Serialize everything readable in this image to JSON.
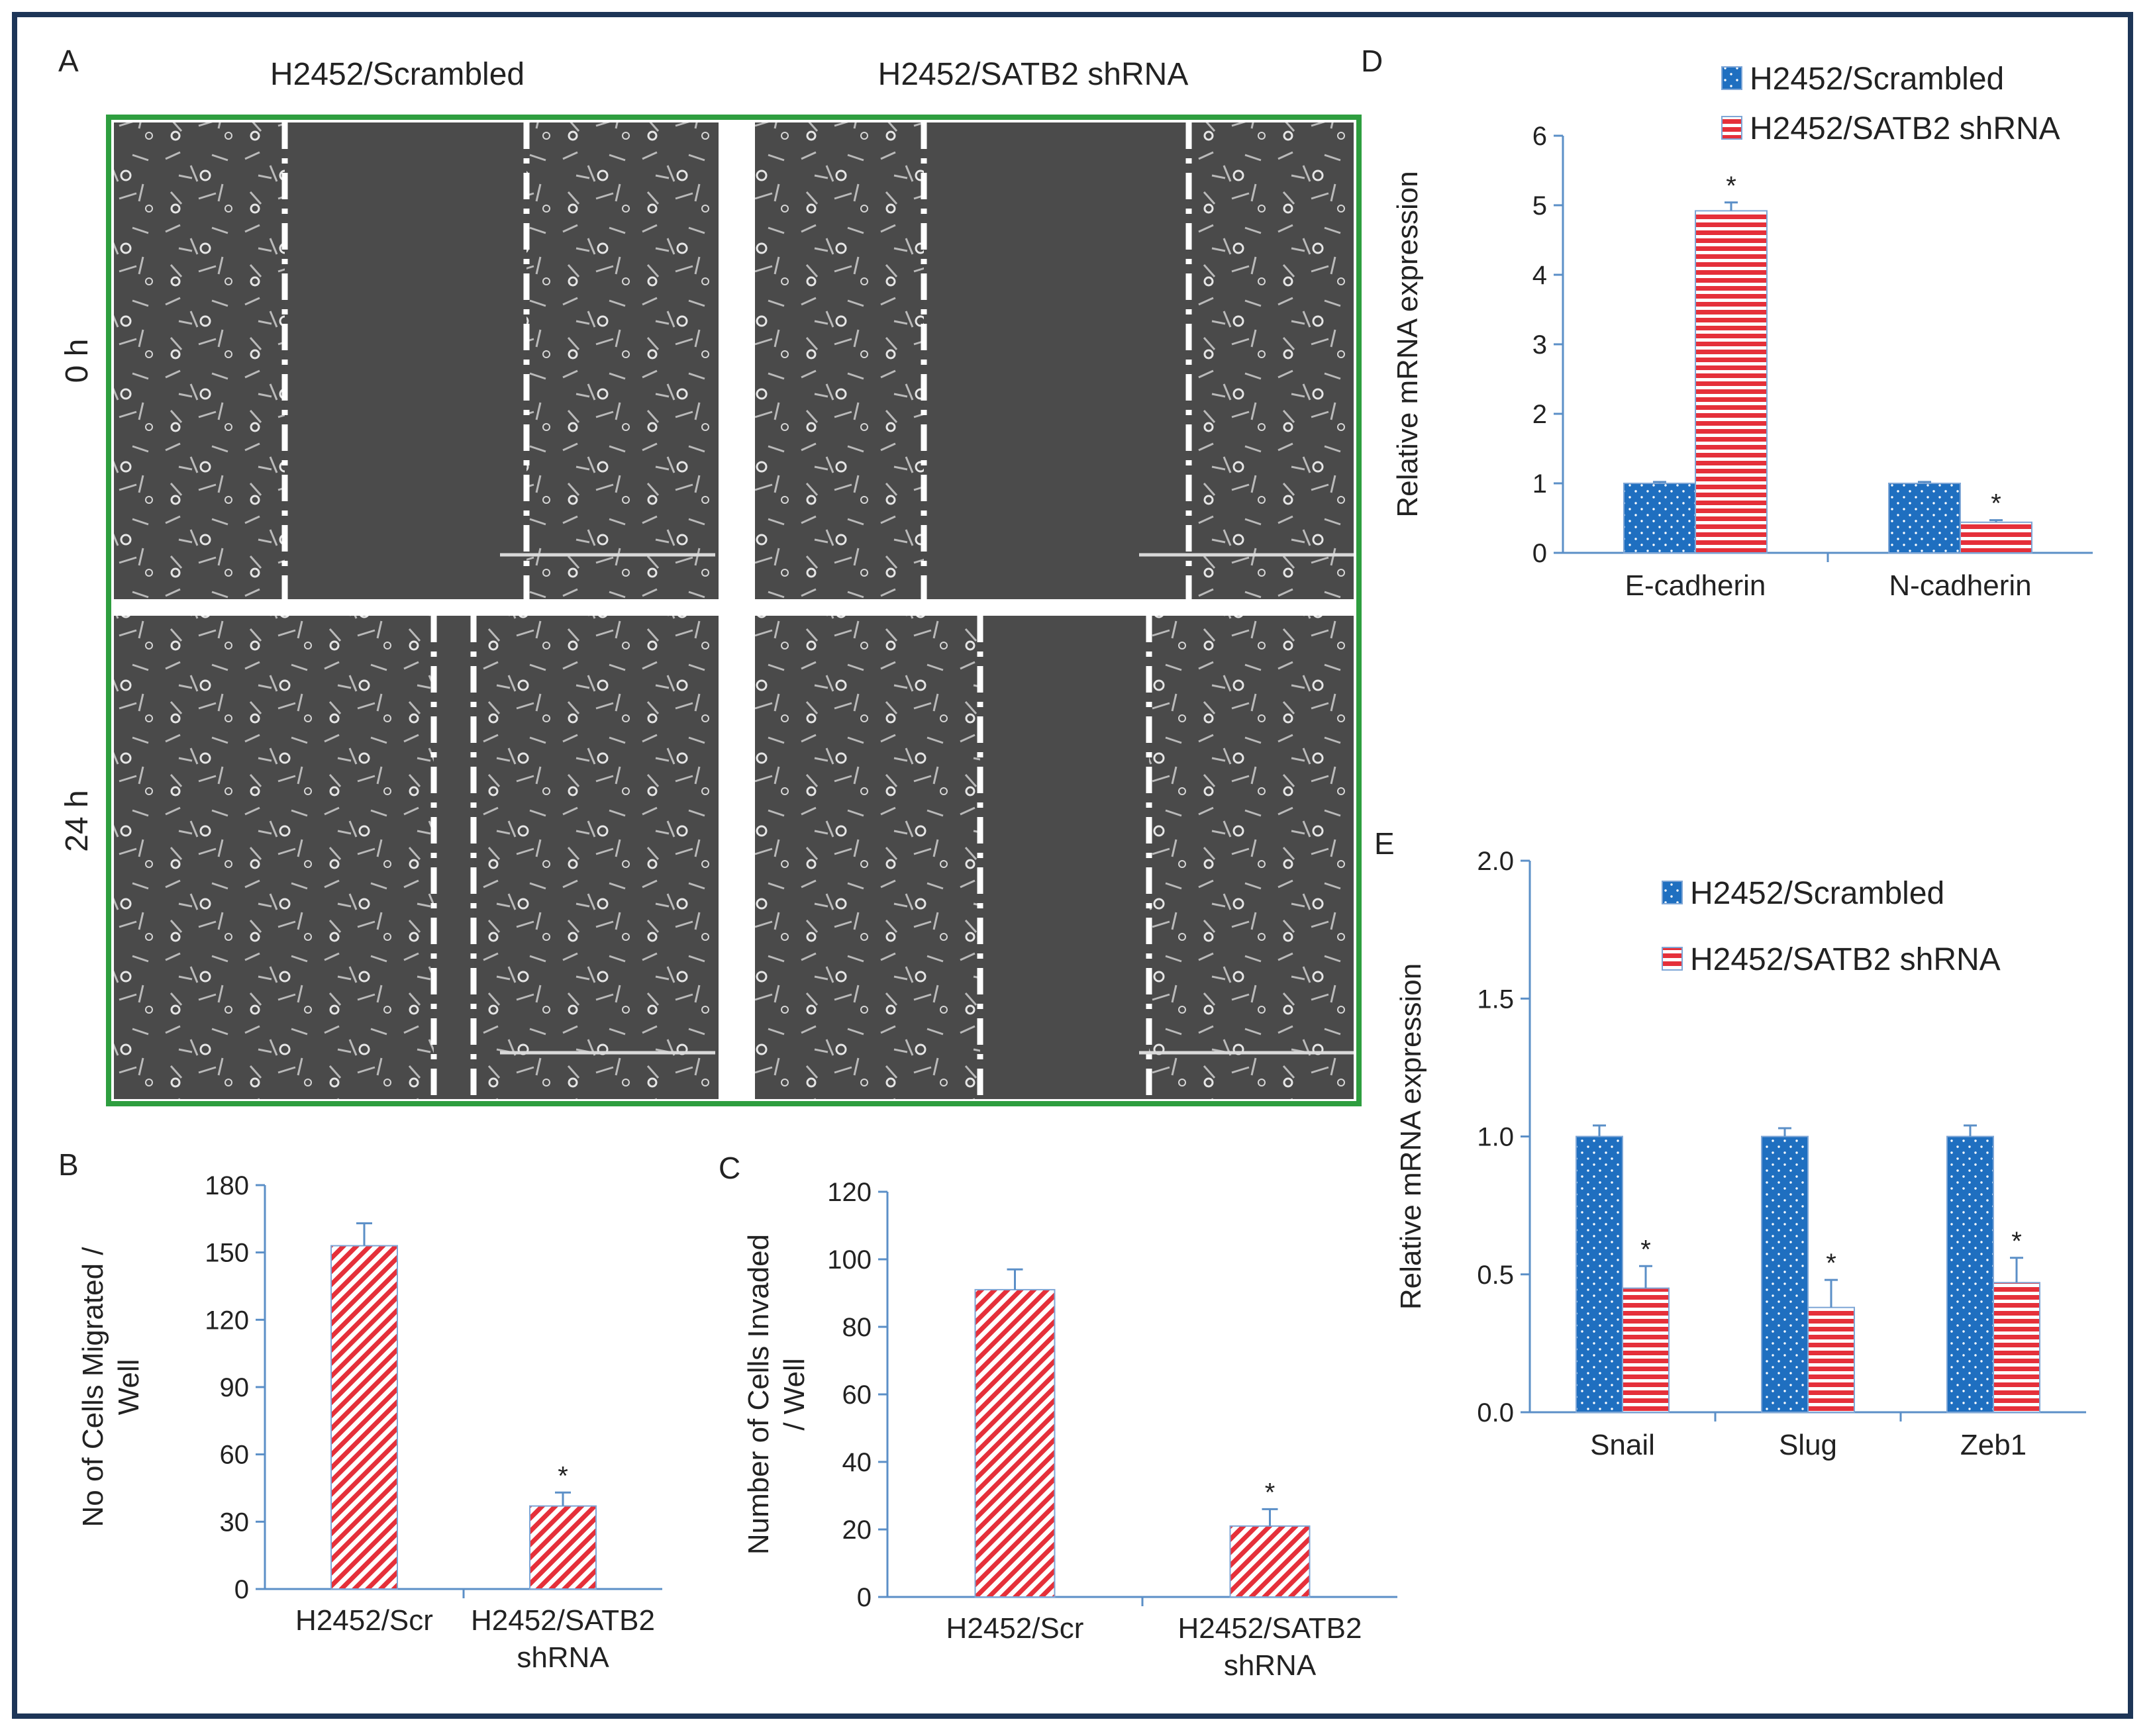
{
  "colors": {
    "frame": "#1d3557",
    "green_border": "#2e9e3f",
    "blue": "#1f6fc0",
    "red": "#e5303a",
    "axis": "#5b8fc7"
  },
  "panelA": {
    "label": "A",
    "col_titles": [
      "H2452/Scrambled",
      "H2452/SATB2 shRNA"
    ],
    "row_labels": [
      "0 h",
      "24 h"
    ]
  },
  "panelB": {
    "label": "B",
    "chart_data": {
      "type": "bar",
      "categories": [
        "H2452/Scr",
        "H2452/SATB2 shRNA"
      ],
      "category_lines": [
        [
          "H2452/Scr"
        ],
        [
          "H2452/SATB2",
          "shRNA"
        ]
      ],
      "values": [
        153,
        37
      ],
      "errors": [
        10,
        6
      ],
      "significance": [
        "",
        "*"
      ],
      "ylabel_lines": [
        "No of Cells Migrated /",
        "Well"
      ],
      "ylim": [
        0,
        180
      ],
      "yticks": [
        0,
        30,
        60,
        90,
        120,
        150,
        180
      ]
    }
  },
  "panelC": {
    "label": "C",
    "chart_data": {
      "type": "bar",
      "categories": [
        "H2452/Scr",
        "H2452/SATB2 shRNA"
      ],
      "category_lines": [
        [
          "H2452/Scr"
        ],
        [
          "H2452/SATB2",
          "shRNA"
        ]
      ],
      "values": [
        91,
        21
      ],
      "errors": [
        6,
        5
      ],
      "significance": [
        "",
        "*"
      ],
      "ylabel_lines": [
        "Number of Cells Invaded",
        "/ Well"
      ],
      "ylim": [
        0,
        120
      ],
      "yticks": [
        0,
        20,
        40,
        60,
        80,
        100,
        120
      ]
    }
  },
  "panelD": {
    "label": "D",
    "chart_data": {
      "type": "bar",
      "categories": [
        "E-cadherin",
        "N-cadherin"
      ],
      "series": [
        {
          "name": "H2452/Scrambled",
          "values": [
            1.0,
            1.0
          ],
          "errors": [
            0.02,
            0.02
          ],
          "significance": [
            "",
            ""
          ]
        },
        {
          "name": "H2452/SATB2 shRNA",
          "values": [
            4.92,
            0.44
          ],
          "errors": [
            0.12,
            0.03
          ],
          "significance": [
            "*",
            "*"
          ]
        }
      ],
      "ylabel": "Relative  mRNA  expression",
      "ylim": [
        0,
        6
      ],
      "yticks": [
        "0",
        "1",
        "2",
        "3",
        "4",
        "5",
        "6"
      ]
    }
  },
  "panelE": {
    "label": "E",
    "chart_data": {
      "type": "bar",
      "categories": [
        "Snail",
        "Slug",
        "Zeb1"
      ],
      "series": [
        {
          "name": "H2452/Scrambled",
          "values": [
            1.0,
            1.0,
            1.0
          ],
          "errors": [
            0.04,
            0.03,
            0.04
          ],
          "significance": [
            "",
            "",
            ""
          ]
        },
        {
          "name": "H2452/SATB2 shRNA",
          "values": [
            0.45,
            0.38,
            0.47
          ],
          "errors": [
            0.08,
            0.1,
            0.09
          ],
          "significance": [
            "*",
            "*",
            "*"
          ]
        }
      ],
      "ylabel": "Relative  mRNA  expression",
      "ylim": [
        0,
        2
      ],
      "yticks": [
        "0.0",
        "0.5",
        "1.0",
        "1.5",
        "2.0"
      ]
    }
  }
}
